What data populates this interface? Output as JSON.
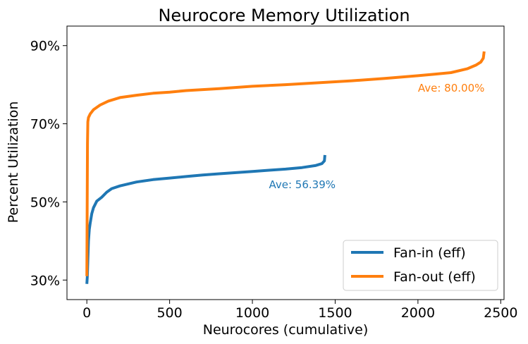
{
  "chart_data": {
    "type": "line",
    "title": "Neurocore Memory Utilization",
    "xlabel": "Neurocores (cumulative)",
    "ylabel": "Percent Utilization",
    "xlim": [
      -120,
      2520
    ],
    "ylim": [
      25,
      95
    ],
    "xticks": [
      0,
      500,
      1000,
      1500,
      2000,
      2500
    ],
    "yticks": [
      30,
      50,
      70,
      90
    ],
    "ytick_suffix": "%",
    "grid": false,
    "legend_position": "lower right",
    "series": [
      {
        "name": "Fan-in (eff)",
        "color": "#1f77b4",
        "points": [
          [
            0,
            29
          ],
          [
            3,
            31
          ],
          [
            6,
            35
          ],
          [
            10,
            40
          ],
          [
            15,
            43
          ],
          [
            20,
            44.5
          ],
          [
            30,
            47
          ],
          [
            40,
            48.5
          ],
          [
            60,
            50.2
          ],
          [
            90,
            51.2
          ],
          [
            120,
            52.5
          ],
          [
            150,
            53.4
          ],
          [
            200,
            54.1
          ],
          [
            300,
            55.1
          ],
          [
            400,
            55.7
          ],
          [
            500,
            56.1
          ],
          [
            600,
            56.5
          ],
          [
            700,
            56.9
          ],
          [
            800,
            57.2
          ],
          [
            900,
            57.5
          ],
          [
            1000,
            57.8
          ],
          [
            1100,
            58.1
          ],
          [
            1200,
            58.4
          ],
          [
            1300,
            58.8
          ],
          [
            1380,
            59.3
          ],
          [
            1420,
            59.8
          ],
          [
            1435,
            60.5
          ],
          [
            1438,
            62
          ]
        ]
      },
      {
        "name": "Fan-out (eff)",
        "color": "#ff7f0e",
        "points": [
          [
            0,
            31
          ],
          [
            2,
            50
          ],
          [
            4,
            65
          ],
          [
            6,
            70.5
          ],
          [
            10,
            71.6
          ],
          [
            20,
            72.5
          ],
          [
            40,
            73.6
          ],
          [
            80,
            74.8
          ],
          [
            130,
            75.8
          ],
          [
            200,
            76.7
          ],
          [
            300,
            77.3
          ],
          [
            400,
            77.8
          ],
          [
            500,
            78.1
          ],
          [
            600,
            78.5
          ],
          [
            800,
            79.0
          ],
          [
            1000,
            79.6
          ],
          [
            1200,
            80.0
          ],
          [
            1400,
            80.5
          ],
          [
            1600,
            81.0
          ],
          [
            1800,
            81.6
          ],
          [
            2000,
            82.3
          ],
          [
            2100,
            82.7
          ],
          [
            2200,
            83.1
          ],
          [
            2300,
            84.1
          ],
          [
            2350,
            85.0
          ],
          [
            2380,
            85.8
          ],
          [
            2395,
            86.8
          ],
          [
            2400,
            88.5
          ]
        ]
      }
    ],
    "annotations": [
      {
        "text": "Ave: 56.39%",
        "x": 1100,
        "y": 53.5,
        "color": "#1f77b4"
      },
      {
        "text": "Ave: 80.00%",
        "x": 2000,
        "y": 78.2,
        "color": "#ff7f0e"
      }
    ]
  }
}
